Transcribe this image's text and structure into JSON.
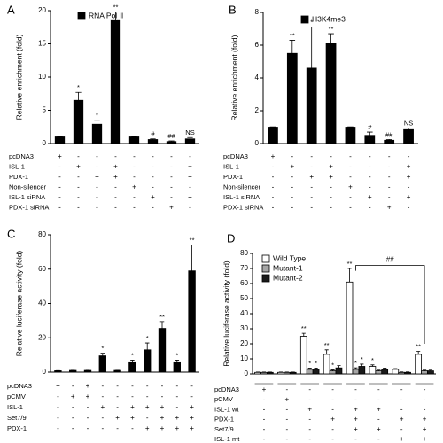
{
  "chart_data": [
    {
      "type": "bar",
      "panel": "A",
      "ylabel": "Relative enrichment (fold)",
      "ylim": [
        0,
        20
      ],
      "yticks": [
        0,
        5,
        10,
        15,
        20
      ],
      "series": [
        {
          "name": "RNA Pol II",
          "color": "#000000",
          "values": [
            1,
            6.5,
            2.9,
            18.5,
            1,
            0.6,
            0.3,
            0.7
          ],
          "errors": [
            0.05,
            1.2,
            0.6,
            1.3,
            0.05,
            0.1,
            0.1,
            0.2
          ],
          "annotations": [
            null,
            "*",
            "*",
            "**",
            null,
            "#",
            "##",
            "NS"
          ]
        }
      ],
      "conditions": [
        {
          "name": "pcDNA3",
          "signs": [
            "+",
            "-",
            "-",
            "-",
            "-",
            "-",
            "-",
            "-"
          ]
        },
        {
          "name": "ISL-1",
          "signs": [
            "-",
            "+",
            "-",
            "+",
            "-",
            "-",
            "-",
            "+"
          ]
        },
        {
          "name": "PDX-1",
          "signs": [
            "-",
            "-",
            "+",
            "+",
            "-",
            "-",
            "-",
            "+"
          ]
        },
        {
          "name": "Non-silencer",
          "signs": [
            "-",
            "-",
            "-",
            "-",
            "+",
            "-",
            "-",
            "-"
          ]
        },
        {
          "name": "ISL-1 siRNA",
          "signs": [
            "-",
            "-",
            "-",
            "-",
            "-",
            "+",
            "-",
            "+"
          ]
        },
        {
          "name": "PDX-1 siRNA",
          "signs": [
            "-",
            "-",
            "-",
            "-",
            "-",
            "-",
            "+",
            "-"
          ]
        }
      ]
    },
    {
      "type": "bar",
      "panel": "B",
      "ylabel": "Relative enrichment (fold)",
      "ylim": [
        0,
        8
      ],
      "yticks": [
        0,
        2,
        4,
        6,
        8
      ],
      "series": [
        {
          "name": "H3K4me3",
          "color": "#000000",
          "values": [
            1,
            5.5,
            4.6,
            6.1,
            1,
            0.5,
            0.2,
            0.85
          ],
          "errors": [
            0.02,
            0.8,
            2.5,
            0.6,
            0.02,
            0.2,
            0.05,
            0.1
          ],
          "annotations": [
            null,
            "**",
            "*",
            "**",
            null,
            "#",
            "##",
            "NS"
          ]
        }
      ],
      "conditions": [
        {
          "name": "pcDNA3",
          "signs": [
            "+",
            "-",
            "-",
            "-",
            "-",
            "-",
            "-",
            "-"
          ]
        },
        {
          "name": "ISL-1",
          "signs": [
            "-",
            "+",
            "-",
            "+",
            "-",
            "-",
            "-",
            "+"
          ]
        },
        {
          "name": "PDX-1",
          "signs": [
            "-",
            "-",
            "+",
            "+",
            "-",
            "-",
            "-",
            "+"
          ]
        },
        {
          "name": "Non-silencer",
          "signs": [
            "-",
            "-",
            "-",
            "-",
            "+",
            "-",
            "-",
            "-"
          ]
        },
        {
          "name": "ISL-1 siRNA",
          "signs": [
            "-",
            "-",
            "-",
            "-",
            "-",
            "+",
            "-",
            "+"
          ]
        },
        {
          "name": "PDX-1 siRNA",
          "signs": [
            "-",
            "-",
            "-",
            "-",
            "-",
            "-",
            "+",
            "-"
          ]
        }
      ]
    },
    {
      "type": "bar",
      "panel": "C",
      "ylabel": "Relative luciferase activity (fold)",
      "ylim": [
        0,
        80
      ],
      "yticks": [
        0,
        20,
        40,
        60,
        80
      ],
      "series": [
        {
          "color": "#000000",
          "values": [
            0.8,
            1,
            1,
            9.5,
            1,
            5.5,
            13,
            25.5,
            5.5,
            59
          ],
          "errors": [
            0.1,
            0.1,
            0.1,
            1.5,
            0.1,
            1.5,
            4,
            4,
            1.5,
            15
          ],
          "annotations": [
            null,
            null,
            null,
            "*",
            null,
            "*",
            "*",
            "**",
            "*",
            "**"
          ]
        }
      ],
      "conditions": [
        {
          "name": "pcDNA3",
          "signs": [
            "+",
            "-",
            "+",
            "-",
            "-",
            "-",
            "-",
            "-",
            "-",
            "-"
          ]
        },
        {
          "name": "pCMV",
          "signs": [
            "-",
            "+",
            "+",
            "-",
            "-",
            "-",
            "-",
            "-",
            "-",
            "-"
          ]
        },
        {
          "name": "ISL-1",
          "signs": [
            "-",
            "-",
            "-",
            "+",
            "-",
            "+",
            "+",
            "+",
            "-",
            "+"
          ]
        },
        {
          "name": "Set7/9",
          "signs": [
            "-",
            "-",
            "-",
            "-",
            "+",
            "+",
            "-",
            "+",
            "+",
            "+"
          ]
        },
        {
          "name": "PDX-1",
          "signs": [
            "-",
            "-",
            "-",
            "-",
            "-",
            "-",
            "+",
            "+",
            "+",
            "+"
          ]
        }
      ]
    },
    {
      "type": "grouped-bar",
      "panel": "D",
      "ylabel": "Relative luciferase activity (fold)",
      "ylim": [
        0,
        80
      ],
      "yticks": [
        0,
        10,
        20,
        30,
        40,
        50,
        60,
        70,
        80
      ],
      "bracket_label": "##",
      "series": [
        {
          "name": "Wild Type",
          "color": "#ffffff",
          "values": [
            1,
            1,
            25,
            13,
            61,
            5,
            3,
            13
          ],
          "errors": [
            0.2,
            0.2,
            2,
            3,
            9,
            1,
            0.5,
            2
          ],
          "annotations": [
            null,
            null,
            "**",
            "**",
            "**",
            "*",
            null,
            "**"
          ]
        },
        {
          "name": "Mutant-1",
          "color": "#a6a6a6",
          "values": [
            1,
            1,
            3,
            2,
            3,
            2,
            1,
            2
          ],
          "errors": [
            0.2,
            0.2,
            0.8,
            0.6,
            1,
            0.5,
            0.3,
            0.5
          ],
          "annotations": [
            null,
            null,
            "*",
            "*",
            "*",
            null,
            null,
            null
          ]
        },
        {
          "name": "Mutant-2",
          "color": "#1a1a1a",
          "values": [
            1,
            1,
            3,
            4,
            5,
            3,
            1,
            2
          ],
          "errors": [
            0.2,
            0.2,
            0.8,
            1.5,
            1.5,
            0.8,
            0.3,
            0.5
          ],
          "annotations": [
            null,
            null,
            "*",
            null,
            "*",
            null,
            null,
            null
          ]
        }
      ],
      "conditions": [
        {
          "name": "pcDNA3",
          "signs": [
            "+",
            "-",
            "-",
            "-",
            "-",
            "-",
            "-",
            "-"
          ]
        },
        {
          "name": "pCMV",
          "signs": [
            "-",
            "+",
            "-",
            "-",
            "-",
            "-",
            "-",
            "-"
          ]
        },
        {
          "name": "ISL-1 wt",
          "signs": [
            "-",
            "-",
            "+",
            "-",
            "+",
            "+",
            "-",
            "-"
          ]
        },
        {
          "name": "PDX-1",
          "signs": [
            "-",
            "-",
            "-",
            "+",
            "+",
            "-",
            "+",
            "+"
          ]
        },
        {
          "name": "Set7/9",
          "signs": [
            "-",
            "-",
            "-",
            "-",
            "+",
            "+",
            "-",
            "+"
          ]
        },
        {
          "name": "ISL-1 mt",
          "signs": [
            "-",
            "-",
            "-",
            "-",
            "-",
            "-",
            "+",
            "+"
          ]
        }
      ]
    }
  ]
}
